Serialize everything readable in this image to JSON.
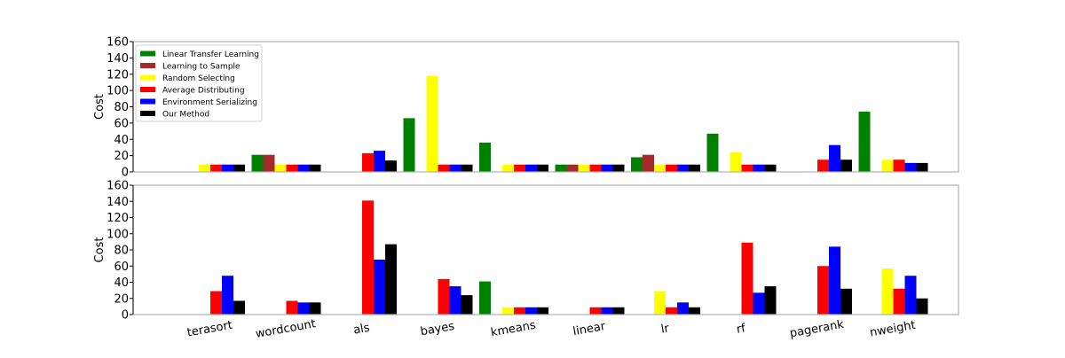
{
  "chart_data": {
    "type": "bar",
    "categories": [
      "terasort",
      "wordcount",
      "als",
      "bayes",
      "kmeans",
      "linear",
      "lr",
      "rf",
      "pagerank",
      "nweight"
    ],
    "legend": {
      "placement": "top-left",
      "entries": [
        {
          "name": "Linear Transfer Learning",
          "color": "#008000"
        },
        {
          "name": "Learning to Sample",
          "color": "#a52a2a"
        },
        {
          "name": "Random Selecting",
          "color": "#ffff00"
        },
        {
          "name": "Average Distributing",
          "color": "#ff0000"
        },
        {
          "name": "Environment Serializing",
          "color": "#0000ff"
        },
        {
          "name": "Our Method",
          "color": "#000000"
        }
      ]
    },
    "panels": [
      {
        "ylabel": "Cost",
        "ylim": [
          0,
          160
        ],
        "yticks": [
          "0",
          "20",
          "40",
          "60",
          "80",
          "100",
          "120",
          "140",
          "160"
        ],
        "grid": false,
        "series": [
          {
            "name": "Linear Transfer Learning",
            "values": [
              null,
              21,
              null,
              66,
              36,
              9,
              18,
              47,
              null,
              74
            ]
          },
          {
            "name": "Learning to Sample",
            "values": [
              null,
              21,
              null,
              null,
              null,
              9,
              21,
              null,
              null,
              null
            ]
          },
          {
            "name": "Random Selecting",
            "values": [
              9,
              9,
              null,
              118,
              9,
              9,
              9,
              24,
              null,
              15
            ]
          },
          {
            "name": "Average Distributing",
            "values": [
              9,
              9,
              23,
              9,
              9,
              9,
              9,
              9,
              15,
              15
            ]
          },
          {
            "name": "Environment Serializing",
            "values": [
              9,
              9,
              26,
              9,
              9,
              9,
              9,
              9,
              33,
              11
            ]
          },
          {
            "name": "Our Method",
            "values": [
              9,
              9,
              14,
              9,
              9,
              9,
              9,
              9,
              15,
              11
            ]
          }
        ]
      },
      {
        "ylabel": "Cost",
        "ylim": [
          0,
          160
        ],
        "yticks": [
          "0",
          "20",
          "40",
          "60",
          "80",
          "100",
          "120",
          "140",
          "160"
        ],
        "grid": false,
        "series": [
          {
            "name": "Linear Transfer Learning",
            "values": [
              null,
              null,
              null,
              null,
              41,
              null,
              null,
              null,
              null,
              null
            ]
          },
          {
            "name": "Learning to Sample",
            "values": [
              null,
              null,
              null,
              null,
              null,
              null,
              null,
              null,
              null,
              null
            ]
          },
          {
            "name": "Random Selecting",
            "values": [
              null,
              null,
              null,
              null,
              9,
              null,
              29,
              null,
              null,
              57
            ]
          },
          {
            "name": "Average Distributing",
            "values": [
              29,
              17,
              141,
              44,
              9,
              9,
              9,
              89,
              60,
              32
            ]
          },
          {
            "name": "Environment Serializing",
            "values": [
              48,
              15,
              68,
              35,
              9,
              9,
              15,
              27,
              84,
              48
            ]
          },
          {
            "name": "Our Method",
            "values": [
              17,
              15,
              87,
              24,
              9,
              9,
              9,
              35,
              32,
              20
            ]
          }
        ]
      }
    ]
  }
}
